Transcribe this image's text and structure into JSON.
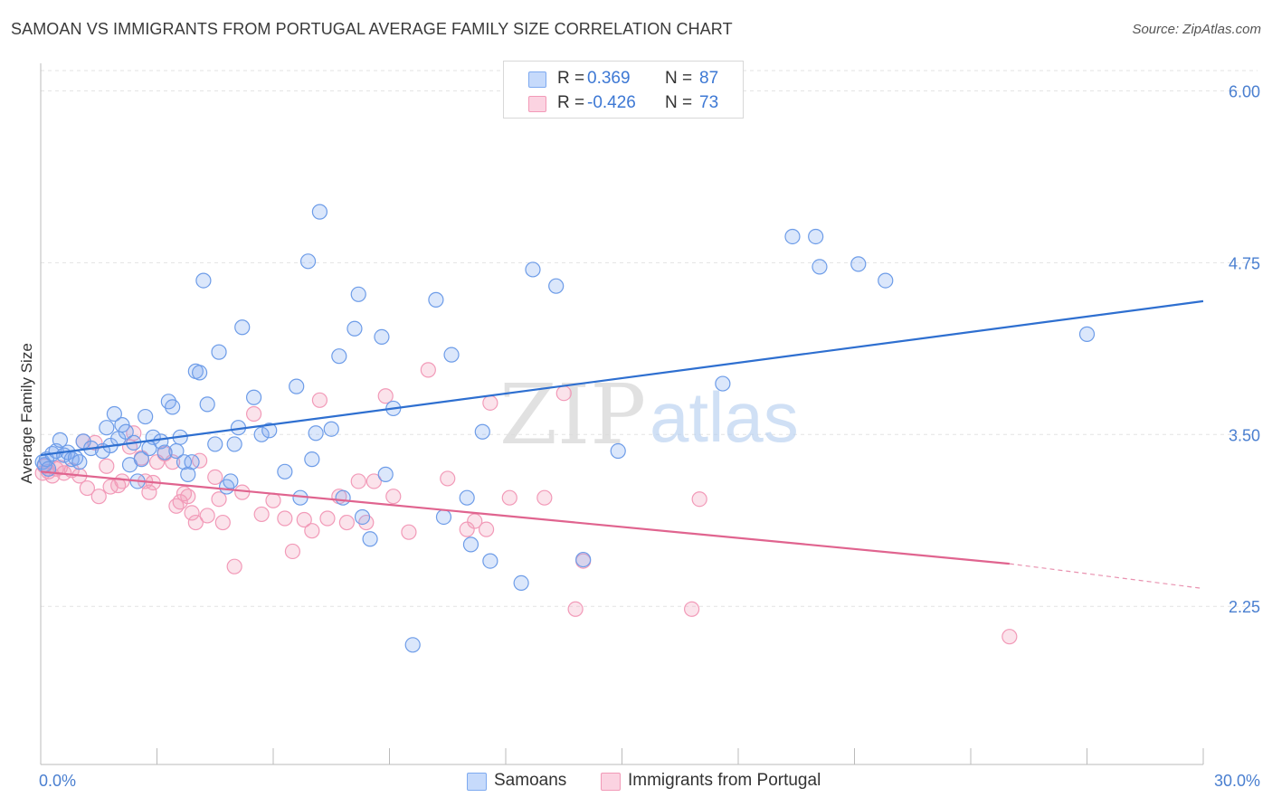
{
  "title": "SAMOAN VS IMMIGRANTS FROM PORTUGAL AVERAGE FAMILY SIZE CORRELATION CHART",
  "source": "Source: ZipAtlas.com",
  "watermark": {
    "zip": "ZIP",
    "atlas": "atlas"
  },
  "legend": {
    "rows": [
      {
        "r_label": "R =",
        "r_value": "0.369",
        "n_label": "N =",
        "n_value": "87",
        "color": "#7eaaf0"
      },
      {
        "r_label": "R =",
        "r_value": "-0.426",
        "n_label": "N =",
        "n_value": "73",
        "color": "#f29ab8"
      }
    ]
  },
  "bottom_legend": {
    "samoans": "Samoans",
    "portugal": "Immigrants from Portugal"
  },
  "chart_data": {
    "type": "scatter",
    "title": "SAMOAN VS IMMIGRANTS FROM PORTUGAL AVERAGE FAMILY SIZE CORRELATION CHART",
    "xlabel": "",
    "ylabel": "Average Family Size",
    "xlim": [
      0,
      30
    ],
    "ylim": [
      1.1,
      6.2
    ],
    "x_tick_labels": [
      "0.0%",
      "30.0%"
    ],
    "y_ticks": [
      2.25,
      3.5,
      4.75,
      6.0
    ],
    "y_tick_labels": [
      "2.25",
      "3.50",
      "4.75",
      "6.00"
    ],
    "grid": true,
    "legend_position": "top-center",
    "colors": {
      "samoans": "#7eaaf0",
      "samoans_line": "#2e6fd0",
      "portugal": "#f29ab8",
      "portugal_line": "#e0648f"
    },
    "series": [
      {
        "name": "Samoans",
        "r": 0.369,
        "n": 87,
        "trend": {
          "x": [
            0,
            30
          ],
          "y": [
            3.35,
            4.47
          ]
        },
        "points": [
          [
            0.05,
            3.3
          ],
          [
            0.1,
            3.28
          ],
          [
            0.15,
            3.32
          ],
          [
            0.2,
            3.25
          ],
          [
            0.3,
            3.36
          ],
          [
            0.4,
            3.38
          ],
          [
            0.5,
            3.46
          ],
          [
            0.6,
            3.35
          ],
          [
            0.7,
            3.37
          ],
          [
            0.8,
            3.32
          ],
          [
            0.9,
            3.33
          ],
          [
            1.0,
            3.3
          ],
          [
            1.1,
            3.45
          ],
          [
            1.3,
            3.4
          ],
          [
            1.6,
            3.38
          ],
          [
            1.7,
            3.55
          ],
          [
            1.8,
            3.42
          ],
          [
            1.9,
            3.65
          ],
          [
            2.0,
            3.47
          ],
          [
            2.1,
            3.57
          ],
          [
            2.2,
            3.52
          ],
          [
            2.3,
            3.28
          ],
          [
            2.4,
            3.44
          ],
          [
            2.5,
            3.16
          ],
          [
            2.6,
            3.32
          ],
          [
            2.7,
            3.63
          ],
          [
            2.8,
            3.4
          ],
          [
            2.9,
            3.48
          ],
          [
            3.1,
            3.45
          ],
          [
            3.2,
            3.37
          ],
          [
            3.3,
            3.74
          ],
          [
            3.4,
            3.7
          ],
          [
            3.5,
            3.38
          ],
          [
            3.6,
            3.48
          ],
          [
            3.7,
            3.3
          ],
          [
            3.8,
            3.21
          ],
          [
            3.9,
            3.3
          ],
          [
            4.0,
            3.96
          ],
          [
            4.1,
            3.95
          ],
          [
            4.2,
            4.62
          ],
          [
            4.3,
            3.72
          ],
          [
            4.5,
            3.43
          ],
          [
            4.6,
            4.1
          ],
          [
            4.8,
            3.12
          ],
          [
            4.9,
            3.16
          ],
          [
            5.0,
            3.43
          ],
          [
            5.1,
            3.55
          ],
          [
            5.2,
            4.28
          ],
          [
            5.5,
            3.77
          ],
          [
            5.7,
            3.5
          ],
          [
            5.9,
            3.53
          ],
          [
            6.3,
            3.23
          ],
          [
            6.6,
            3.85
          ],
          [
            6.7,
            3.04
          ],
          [
            6.9,
            4.76
          ],
          [
            7.0,
            3.32
          ],
          [
            7.1,
            3.51
          ],
          [
            7.2,
            5.12
          ],
          [
            7.5,
            3.54
          ],
          [
            7.7,
            4.07
          ],
          [
            7.8,
            3.04
          ],
          [
            8.1,
            4.27
          ],
          [
            8.2,
            4.52
          ],
          [
            8.3,
            2.9
          ],
          [
            8.5,
            2.74
          ],
          [
            8.8,
            4.21
          ],
          [
            8.9,
            3.21
          ],
          [
            9.1,
            3.69
          ],
          [
            9.6,
            1.97
          ],
          [
            10.2,
            4.48
          ],
          [
            10.4,
            2.9
          ],
          [
            10.6,
            4.08
          ],
          [
            11.0,
            3.04
          ],
          [
            11.1,
            2.7
          ],
          [
            11.4,
            3.52
          ],
          [
            11.6,
            2.58
          ],
          [
            12.4,
            2.42
          ],
          [
            12.7,
            4.7
          ],
          [
            13.3,
            4.58
          ],
          [
            14.0,
            2.59
          ],
          [
            14.9,
            3.38
          ],
          [
            17.6,
            3.87
          ],
          [
            19.4,
            4.94
          ],
          [
            20.0,
            4.94
          ],
          [
            20.1,
            4.72
          ],
          [
            21.1,
            4.74
          ],
          [
            21.8,
            4.62
          ],
          [
            27.0,
            4.23
          ]
        ]
      },
      {
        "name": "Immigrants from Portugal",
        "r": -0.426,
        "n": 73,
        "trend": {
          "x": [
            0,
            25
          ],
          "y": [
            3.23,
            2.56
          ]
        },
        "trend_dashed": {
          "x": [
            25,
            30
          ],
          "y": [
            2.56,
            2.38
          ]
        },
        "points": [
          [
            0.05,
            3.22
          ],
          [
            0.1,
            3.27
          ],
          [
            0.2,
            3.23
          ],
          [
            0.3,
            3.2
          ],
          [
            0.4,
            3.25
          ],
          [
            0.5,
            3.26
          ],
          [
            0.6,
            3.22
          ],
          [
            0.8,
            3.24
          ],
          [
            1.0,
            3.2
          ],
          [
            1.1,
            3.45
          ],
          [
            1.2,
            3.11
          ],
          [
            1.4,
            3.44
          ],
          [
            1.5,
            3.05
          ],
          [
            1.7,
            3.27
          ],
          [
            1.8,
            3.12
          ],
          [
            2.0,
            3.13
          ],
          [
            2.1,
            3.16
          ],
          [
            2.3,
            3.41
          ],
          [
            2.4,
            3.51
          ],
          [
            2.6,
            3.33
          ],
          [
            2.7,
            3.16
          ],
          [
            2.8,
            3.08
          ],
          [
            2.9,
            3.15
          ],
          [
            3.0,
            3.3
          ],
          [
            3.2,
            3.36
          ],
          [
            3.4,
            3.3
          ],
          [
            3.5,
            2.98
          ],
          [
            3.6,
            3.01
          ],
          [
            3.7,
            3.07
          ],
          [
            3.8,
            3.05
          ],
          [
            3.9,
            2.93
          ],
          [
            4.0,
            2.86
          ],
          [
            4.1,
            3.31
          ],
          [
            4.3,
            2.91
          ],
          [
            4.5,
            3.19
          ],
          [
            4.6,
            3.03
          ],
          [
            4.7,
            2.86
          ],
          [
            5.0,
            2.54
          ],
          [
            5.2,
            3.08
          ],
          [
            5.5,
            3.65
          ],
          [
            5.7,
            2.92
          ],
          [
            6.0,
            3.02
          ],
          [
            6.3,
            2.89
          ],
          [
            6.5,
            2.65
          ],
          [
            6.8,
            2.88
          ],
          [
            7.0,
            2.8
          ],
          [
            7.2,
            3.75
          ],
          [
            7.4,
            2.89
          ],
          [
            7.7,
            3.05
          ],
          [
            7.9,
            2.86
          ],
          [
            8.2,
            3.16
          ],
          [
            8.4,
            2.86
          ],
          [
            8.6,
            3.16
          ],
          [
            8.9,
            3.78
          ],
          [
            9.1,
            3.05
          ],
          [
            9.5,
            2.79
          ],
          [
            10.0,
            3.97
          ],
          [
            10.5,
            3.18
          ],
          [
            11.0,
            2.81
          ],
          [
            11.2,
            2.87
          ],
          [
            11.5,
            2.81
          ],
          [
            11.6,
            3.73
          ],
          [
            12.1,
            3.04
          ],
          [
            13.0,
            3.04
          ],
          [
            13.5,
            3.8
          ],
          [
            13.8,
            2.23
          ],
          [
            14.0,
            2.58
          ],
          [
            16.8,
            2.23
          ],
          [
            17.0,
            3.03
          ],
          [
            25.0,
            2.03
          ]
        ]
      }
    ]
  }
}
